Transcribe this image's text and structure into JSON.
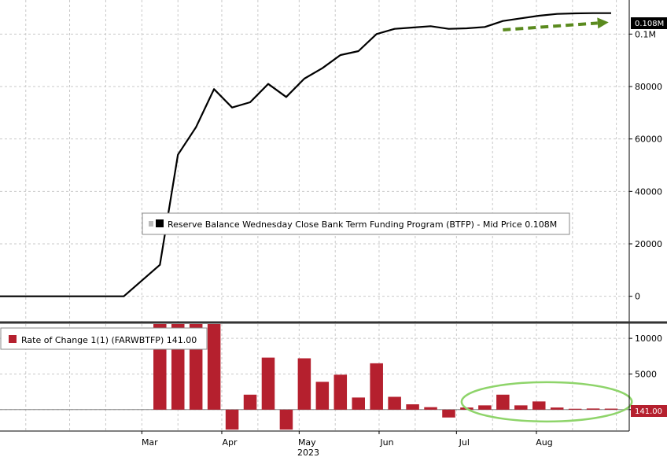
{
  "chart_data": [
    {
      "type": "line",
      "legend": "Reserve Balance Wednesday Close Bank Term Funding Program (BTFP) - Mid Price 0.108M",
      "last_value_label": "0.108M",
      "y_ticks": [
        {
          "value": 0,
          "label": "0"
        },
        {
          "value": 20000,
          "label": "20000"
        },
        {
          "value": 40000,
          "label": "40000"
        },
        {
          "value": 60000,
          "label": "60000"
        },
        {
          "value": 80000,
          "label": "80000"
        },
        {
          "value": 100000,
          "label": "0.1M"
        }
      ],
      "ylim": [
        -10000,
        113000
      ],
      "x_ticks": [
        {
          "date": "2023-03-01",
          "label": "Mar"
        },
        {
          "date": "2023-04-01",
          "label": "Apr"
        },
        {
          "date": "2023-05-01",
          "label": "May"
        },
        {
          "date": "2023-06-01",
          "label": "Jun"
        },
        {
          "date": "2023-07-01",
          "label": "Jul"
        },
        {
          "date": "2023-08-01",
          "label": "Aug"
        }
      ],
      "x_range": [
        "2023-01-05",
        "2023-09-06"
      ],
      "x_year_label": "2023",
      "x": [
        "2023-01-05",
        "2023-02-22",
        "2023-03-08",
        "2023-03-15",
        "2023-03-22",
        "2023-03-29",
        "2023-04-05",
        "2023-04-12",
        "2023-04-19",
        "2023-04-26",
        "2023-05-03",
        "2023-05-10",
        "2023-05-17",
        "2023-05-24",
        "2023-05-31",
        "2023-06-07",
        "2023-06-14",
        "2023-06-21",
        "2023-06-28",
        "2023-07-05",
        "2023-07-12",
        "2023-07-19",
        "2023-07-26",
        "2023-08-02",
        "2023-08-09",
        "2023-08-16",
        "2023-08-23",
        "2023-08-30"
      ],
      "values": [
        0,
        0,
        12000,
        54000,
        64500,
        79000,
        72000,
        74000,
        81000,
        76000,
        83000,
        87000,
        92000,
        93500,
        100000,
        102000,
        102500,
        103000,
        102000,
        102200,
        102700,
        105000,
        106000,
        107000,
        107700,
        107900,
        108000,
        108000
      ],
      "trend_arrow": {
        "from": {
          "x": "2023-07-19",
          "y": 101600
        },
        "to": {
          "x": "2023-08-29",
          "y": 104500
        },
        "color": "#5a8a1e"
      },
      "grid": true,
      "colors": {
        "line": "#000000"
      }
    },
    {
      "type": "bar",
      "legend": "Rate of Change 1(1) (FARWBTFP) 141.00",
      "last_value_label": "141.00",
      "y_ticks": [
        {
          "value": 0,
          "label": "0"
        },
        {
          "value": 5000,
          "label": "5000"
        },
        {
          "value": 10000,
          "label": "10000"
        }
      ],
      "ylim": [
        -3000,
        12000
      ],
      "x": [
        "2023-03-08",
        "2023-03-15",
        "2023-03-22",
        "2023-03-29",
        "2023-04-05",
        "2023-04-12",
        "2023-04-19",
        "2023-04-26",
        "2023-05-03",
        "2023-05-10",
        "2023-05-17",
        "2023-05-24",
        "2023-05-31",
        "2023-06-07",
        "2023-06-14",
        "2023-06-21",
        "2023-06-28",
        "2023-07-05",
        "2023-07-12",
        "2023-07-19",
        "2023-07-26",
        "2023-08-02",
        "2023-08-09",
        "2023-08-16",
        "2023-08-23",
        "2023-08-30"
      ],
      "values": [
        12000,
        12000,
        12000,
        12000,
        -2800,
        2100,
        7300,
        -2800,
        7200,
        3900,
        4900,
        1700,
        6500,
        1800,
        750,
        350,
        -1100,
        300,
        600,
        2100,
        600,
        1150,
        300,
        120,
        160,
        141
      ],
      "highlight_ellipse": {
        "x_from": "2023-07-03",
        "x_to": "2023-09-07",
        "y_center": 1100,
        "color": "#8ed46a"
      },
      "grid": true,
      "colors": {
        "bar": "#b5202e",
        "tag": "#b5202e"
      }
    }
  ]
}
